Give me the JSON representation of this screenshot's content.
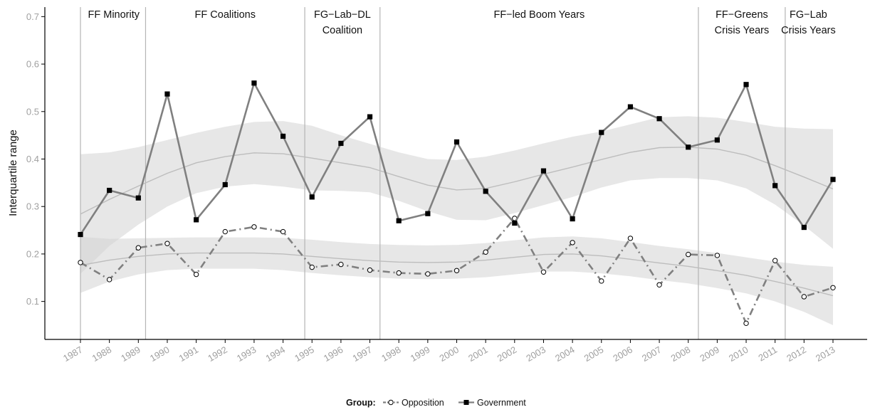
{
  "chart_data": {
    "type": "line",
    "title": "",
    "xlabel": "",
    "ylabel": "Interquartile range",
    "x": [
      1987,
      1988,
      1989,
      1990,
      1991,
      1992,
      1993,
      1994,
      1995,
      1996,
      1997,
      1998,
      1999,
      2000,
      2001,
      2002,
      2003,
      2004,
      2005,
      2006,
      2007,
      2008,
      2009,
      2010,
      2011,
      2012,
      2013
    ],
    "xlim": [
      1987,
      2013
    ],
    "ylim": [
      0.02,
      0.72
    ],
    "yticks": [
      0.1,
      0.2,
      0.3,
      0.4,
      0.5,
      0.6,
      0.7
    ],
    "ytick_labels": [
      "0.1",
      "0.2",
      "0.3",
      "0.4",
      "0.5",
      "0.6",
      "0.7"
    ],
    "xtick_labels": [
      "1987",
      "1988",
      "1989",
      "1990",
      "1991",
      "1992",
      "1993",
      "1994",
      "1995",
      "1996",
      "1997",
      "1998",
      "1999",
      "2000",
      "2001",
      "2002",
      "2003",
      "2004",
      "2005",
      "2006",
      "2007",
      "2008",
      "2009",
      "2010",
      "2011",
      "2012",
      "2013"
    ],
    "grid": false,
    "series": [
      {
        "name": "Opposition",
        "marker": "open-circle",
        "line_style": "dash-dot",
        "color": "#808080",
        "values": [
          0.182,
          0.146,
          0.213,
          0.222,
          0.157,
          0.247,
          0.257,
          0.247,
          0.172,
          0.178,
          0.166,
          0.16,
          0.158,
          0.165,
          0.204,
          0.275,
          0.162,
          0.224,
          0.143,
          0.233,
          0.135,
          0.199,
          0.197,
          0.054,
          0.186,
          0.11,
          0.129
        ]
      },
      {
        "name": "Government",
        "marker": "filled-square",
        "line_style": "solid",
        "color": "#808080",
        "values": [
          0.241,
          0.334,
          0.318,
          0.537,
          0.272,
          0.346,
          0.56,
          0.448,
          0.32,
          0.433,
          0.489,
          0.27,
          0.285,
          0.436,
          0.332,
          0.265,
          0.375,
          0.274,
          0.456,
          0.51,
          0.485,
          0.425,
          0.44,
          0.557,
          0.344,
          0.256,
          0.357
        ]
      }
    ],
    "smooth_bands": [
      {
        "series": "Government",
        "fit": [
          0.284,
          0.315,
          0.343,
          0.37,
          0.392,
          0.405,
          0.413,
          0.411,
          0.402,
          0.392,
          0.382,
          0.363,
          0.345,
          0.335,
          0.338,
          0.352,
          0.368,
          0.383,
          0.399,
          0.414,
          0.424,
          0.425,
          0.421,
          0.408,
          0.386,
          0.362,
          0.337
        ],
        "upper": [
          0.41,
          0.414,
          0.425,
          0.44,
          0.455,
          0.468,
          0.478,
          0.48,
          0.47,
          0.45,
          0.432,
          0.414,
          0.4,
          0.398,
          0.405,
          0.418,
          0.433,
          0.447,
          0.458,
          0.473,
          0.488,
          0.49,
          0.487,
          0.478,
          0.468,
          0.464,
          0.463
        ],
        "lower": [
          0.158,
          0.217,
          0.262,
          0.3,
          0.328,
          0.342,
          0.347,
          0.342,
          0.334,
          0.333,
          0.33,
          0.312,
          0.29,
          0.272,
          0.271,
          0.286,
          0.303,
          0.32,
          0.34,
          0.355,
          0.36,
          0.36,
          0.355,
          0.338,
          0.304,
          0.26,
          0.211
        ]
      },
      {
        "series": "Opposition",
        "fit": [
          0.176,
          0.187,
          0.195,
          0.2,
          0.202,
          0.202,
          0.202,
          0.2,
          0.195,
          0.19,
          0.186,
          0.183,
          0.182,
          0.183,
          0.187,
          0.193,
          0.199,
          0.2,
          0.196,
          0.189,
          0.181,
          0.174,
          0.165,
          0.155,
          0.142,
          0.128,
          0.112
        ],
        "upper": [
          0.236,
          0.232,
          0.233,
          0.234,
          0.235,
          0.235,
          0.235,
          0.234,
          0.23,
          0.225,
          0.221,
          0.219,
          0.218,
          0.219,
          0.223,
          0.229,
          0.235,
          0.237,
          0.233,
          0.225,
          0.217,
          0.21,
          0.202,
          0.193,
          0.184,
          0.177,
          0.173
        ],
        "lower": [
          0.118,
          0.142,
          0.157,
          0.166,
          0.169,
          0.169,
          0.169,
          0.166,
          0.16,
          0.155,
          0.151,
          0.148,
          0.147,
          0.148,
          0.151,
          0.157,
          0.163,
          0.163,
          0.159,
          0.153,
          0.145,
          0.138,
          0.128,
          0.117,
          0.1,
          0.078,
          0.05
        ]
      }
    ],
    "period_dividers": [
      1987,
      1989.25,
      1994.75,
      1997.35,
      2008.35,
      2011.35
    ],
    "periods": [
      {
        "lines": [
          "FF Minority"
        ],
        "x_center": 1988.15
      },
      {
        "lines": [
          "FF Coalitions"
        ],
        "x_center": 1992.0
      },
      {
        "lines": [
          "FG−Lab−DL",
          "Coalition"
        ],
        "x_center": 1996.05
      },
      {
        "lines": [
          "FF−led Boom Years"
        ],
        "x_center": 2002.85
      },
      {
        "lines": [
          "FF−Greens",
          "Crisis Years"
        ],
        "x_center": 2009.85
      },
      {
        "lines": [
          "FG−Lab",
          "Crisis Years"
        ],
        "x_center": 2012.15
      }
    ],
    "legend": {
      "title": "Group:",
      "position": "bottom-center",
      "entries": [
        "Opposition",
        "Government"
      ]
    }
  }
}
